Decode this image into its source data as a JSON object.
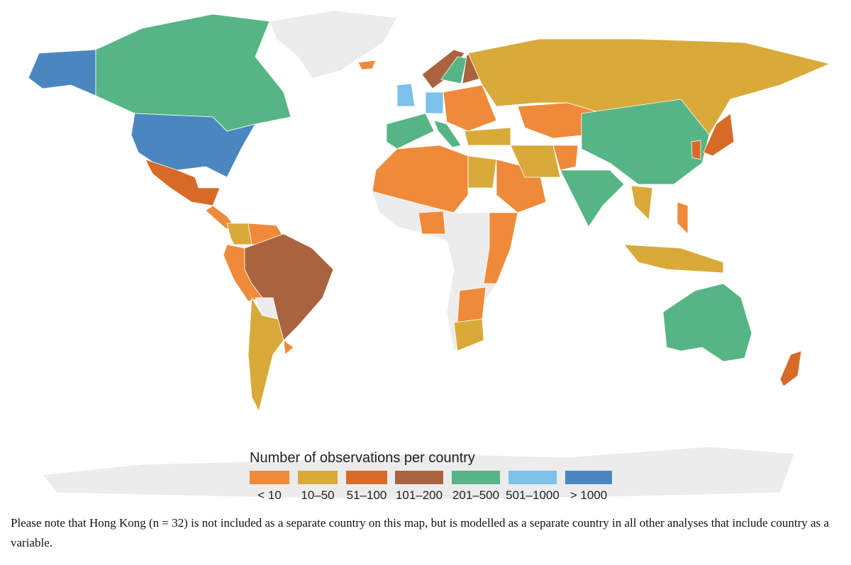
{
  "legend": {
    "title": "Number of observations per country",
    "bins": [
      {
        "label": "< 10",
        "color": "#ef8a3a"
      },
      {
        "label": "10–50",
        "color": "#d9aa3a"
      },
      {
        "label": "51–100",
        "color": "#d86a28"
      },
      {
        "label": "101–200",
        "color": "#a9643f"
      },
      {
        "label": "201–500",
        "color": "#56b584"
      },
      {
        "label": "501–1000",
        "color": "#7cc1ea"
      },
      {
        "label": "> 1000",
        "color": "#4a87c0"
      }
    ]
  },
  "caption": "Please note that Hong Kong (n = 32) is not included as a separate country on this map, but is modelled as a separate country in all other analyses that include country as a variable."
}
